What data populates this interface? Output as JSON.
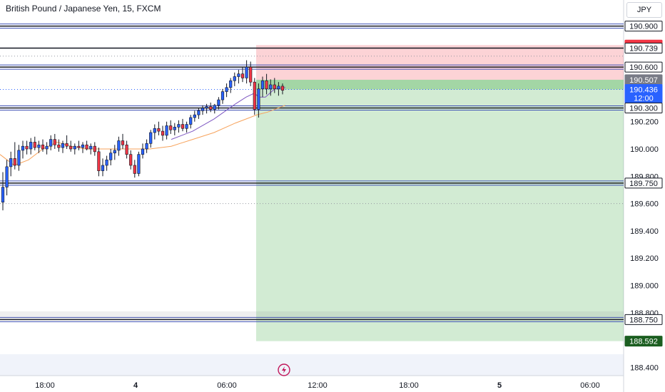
{
  "header": {
    "title": "British Pound / Japanese Yen, 15, FXCM",
    "currency": "JPY"
  },
  "chart_data": {
    "type": "candlestick",
    "price_axis_labels": [
      "190.200",
      "190.000",
      "189.800",
      "189.600",
      "189.400",
      "189.200",
      "189.000",
      "188.800",
      "188.400"
    ],
    "time_axis_labels": [
      "18:00",
      "4",
      "06:00",
      "12:00",
      "18:00",
      "5",
      "06:00"
    ],
    "horizontal_levels": [
      190.9,
      190.739,
      190.6,
      190.3,
      189.75,
      188.75
    ],
    "level_labels": [
      {
        "value": "190.900",
        "style": "outline"
      },
      {
        "value": "190.761",
        "style": "red"
      },
      {
        "value": "190.739",
        "style": "outline"
      },
      {
        "value": "190.600",
        "style": "outline"
      },
      {
        "value": "190.507",
        "style": "gray"
      },
      {
        "value": "190.436",
        "style": "blue",
        "sub": "12:00"
      },
      {
        "value": "190.300",
        "style": "outline"
      },
      {
        "value": "189.750",
        "style": "outline"
      },
      {
        "value": "188.750",
        "style": "outline"
      },
      {
        "value": "188.592",
        "style": "green"
      }
    ],
    "position": {
      "type": "long",
      "entry": 190.507,
      "stop": 190.761,
      "target": 188.592
    },
    "last_price": 190.436,
    "candles": [
      [
        189.61,
        189.83,
        189.55,
        189.72
      ],
      [
        189.72,
        189.92,
        189.66,
        189.87
      ],
      [
        189.87,
        189.98,
        189.8,
        189.93
      ],
      [
        189.93,
        190.05,
        189.85,
        189.88
      ],
      [
        189.88,
        190.03,
        189.84,
        189.99
      ],
      [
        189.99,
        190.06,
        189.93,
        190.02
      ],
      [
        190.02,
        190.06,
        189.96,
        190.0
      ],
      [
        190.0,
        190.08,
        189.96,
        190.05
      ],
      [
        190.05,
        190.09,
        189.99,
        190.01
      ],
      [
        190.01,
        190.06,
        189.97,
        190.03
      ],
      [
        190.03,
        190.07,
        189.98,
        190.0
      ],
      [
        190.0,
        190.05,
        189.96,
        190.02
      ],
      [
        190.02,
        190.1,
        189.99,
        190.07
      ],
      [
        190.07,
        190.11,
        190.0,
        190.03
      ],
      [
        190.03,
        190.07,
        189.98,
        190.01
      ],
      [
        190.01,
        190.06,
        189.97,
        190.04
      ],
      [
        190.04,
        190.1,
        190.0,
        190.02
      ],
      [
        190.02,
        190.06,
        189.98,
        190.0
      ],
      [
        190.0,
        190.04,
        189.96,
        190.02
      ],
      [
        190.02,
        190.06,
        189.99,
        190.01
      ],
      [
        190.01,
        190.05,
        189.97,
        190.03
      ],
      [
        190.03,
        190.06,
        189.99,
        190.0
      ],
      [
        190.0,
        190.04,
        189.96,
        190.02
      ],
      [
        190.02,
        190.05,
        189.95,
        189.98
      ],
      [
        189.98,
        190.01,
        189.8,
        189.84
      ],
      [
        189.84,
        189.93,
        189.8,
        189.88
      ],
      [
        189.88,
        189.95,
        189.84,
        189.92
      ],
      [
        189.92,
        190.0,
        189.88,
        189.97
      ],
      [
        189.97,
        190.03,
        189.92,
        189.99
      ],
      [
        189.99,
        190.09,
        189.95,
        190.06
      ],
      [
        190.06,
        190.11,
        190.0,
        190.03
      ],
      [
        190.03,
        190.06,
        189.93,
        189.96
      ],
      [
        189.96,
        189.99,
        189.85,
        189.88
      ],
      [
        189.88,
        189.92,
        189.79,
        189.82
      ],
      [
        189.82,
        189.98,
        189.8,
        189.96
      ],
      [
        189.96,
        190.04,
        189.93,
        190.0
      ],
      [
        190.0,
        190.07,
        189.97,
        190.04
      ],
      [
        190.04,
        190.14,
        190.01,
        190.12
      ],
      [
        190.12,
        190.18,
        190.07,
        190.15
      ],
      [
        190.15,
        190.2,
        190.1,
        190.13
      ],
      [
        190.13,
        190.17,
        190.06,
        190.1
      ],
      [
        190.1,
        190.2,
        190.07,
        190.17
      ],
      [
        190.17,
        190.21,
        190.11,
        190.14
      ],
      [
        190.14,
        190.19,
        190.1,
        190.16
      ],
      [
        190.16,
        190.21,
        190.12,
        190.18
      ],
      [
        190.18,
        190.22,
        190.13,
        190.15
      ],
      [
        190.15,
        190.2,
        190.12,
        190.18
      ],
      [
        190.18,
        190.25,
        190.15,
        190.23
      ],
      [
        190.23,
        190.28,
        190.2,
        190.25
      ],
      [
        190.25,
        190.3,
        190.22,
        190.28
      ],
      [
        190.28,
        190.32,
        190.25,
        190.3
      ],
      [
        190.3,
        190.33,
        190.26,
        190.31
      ],
      [
        190.31,
        190.34,
        190.27,
        190.29
      ],
      [
        190.29,
        190.33,
        190.26,
        190.32
      ],
      [
        190.32,
        190.38,
        190.29,
        190.36
      ],
      [
        190.36,
        190.44,
        190.33,
        190.42
      ],
      [
        190.42,
        190.48,
        190.38,
        190.45
      ],
      [
        190.45,
        190.52,
        190.41,
        190.5
      ],
      [
        190.5,
        190.56,
        190.46,
        190.53
      ],
      [
        190.53,
        190.58,
        190.48,
        190.55
      ],
      [
        190.55,
        190.6,
        190.49,
        190.52
      ],
      [
        190.52,
        190.65,
        190.48,
        190.6
      ],
      [
        190.6,
        190.64,
        190.46,
        190.49
      ],
      [
        190.49,
        190.52,
        190.25,
        190.29
      ],
      [
        190.29,
        190.48,
        190.23,
        190.44
      ],
      [
        190.44,
        190.53,
        190.38,
        190.5
      ],
      [
        190.5,
        190.55,
        190.4,
        190.44
      ],
      [
        190.44,
        190.51,
        190.39,
        190.47
      ],
      [
        190.47,
        190.52,
        190.41,
        190.44
      ],
      [
        190.44,
        190.49,
        190.39,
        190.46
      ],
      [
        190.46,
        190.48,
        190.4,
        190.43
      ]
    ],
    "moving_averages": [
      {
        "name": "",
        "color": "#f7a35c",
        "points": [
          [
            0,
            189.96
          ],
          [
            20,
            189.88
          ],
          [
            40,
            189.92
          ],
          [
            60,
            190.0
          ],
          [
            80,
            190.05
          ],
          [
            100,
            190.02
          ],
          [
            120,
            190.0
          ],
          [
            150,
            190.0
          ],
          [
            180,
            190.0
          ],
          [
            210,
            190.0
          ],
          [
            240,
            190.02
          ],
          [
            270,
            190.07
          ],
          [
            300,
            190.12
          ],
          [
            330,
            190.19
          ],
          [
            350,
            190.23
          ],
          [
            360,
            190.25
          ],
          [
            375,
            190.27
          ],
          [
            400,
            190.32
          ]
        ]
      },
      {
        "name": "",
        "color": "#7e57c2",
        "points": [
          [
            240,
            190.07
          ],
          [
            270,
            190.13
          ],
          [
            300,
            190.22
          ],
          [
            330,
            190.33
          ],
          [
            345,
            190.38
          ],
          [
            357,
            190.41
          ],
          [
            362,
            190.38
          ],
          [
            372,
            190.38
          ],
          [
            385,
            190.44
          ],
          [
            400,
            190.45
          ]
        ]
      }
    ]
  }
}
